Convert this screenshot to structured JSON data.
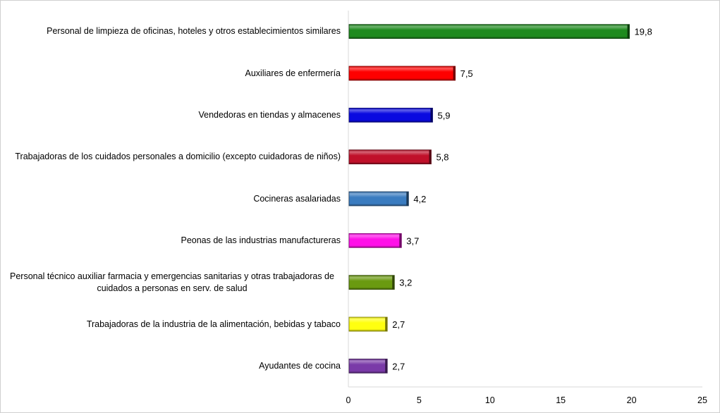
{
  "chart_data": {
    "type": "bar",
    "orientation": "horizontal",
    "title": "",
    "xlabel": "",
    "ylabel": "",
    "xlim": [
      0,
      25
    ],
    "xticks": [
      "0",
      "5",
      "10",
      "15",
      "20",
      "25"
    ],
    "grid": false,
    "legend": "none",
    "categories": [
      "Personal de limpieza de oficinas, hoteles y otros establecimientos similares",
      "Auxiliares de enfermería",
      "Vendedoras en tiendas y almacenes",
      "Trabajadoras de los cuidados personales a domicilio (excepto cuidadoras de niños)",
      "Cocineras asalariadas",
      "Peonas de las industrias manufactureras",
      "Personal técnico auxiliar farmacia y emergencias sanitarias y otras trabajadoras de cuidados a  personas en serv. de salud",
      "Trabajadoras de la industria de la alimentación, bebidas y tabaco",
      "Ayudantes de cocina"
    ],
    "values": [
      19.8,
      7.5,
      5.9,
      5.8,
      4.2,
      3.7,
      3.2,
      2.7,
      2.7
    ],
    "data_labels": [
      "19,8",
      "7,5",
      "5,9",
      "5,8",
      "4,2",
      "3,7",
      "3,2",
      "2,7",
      "2,7"
    ],
    "colors": [
      "#1e8a1e",
      "#ff0000",
      "#0a0ae0",
      "#c0102a",
      "#3a7cc0",
      "#ff10e8",
      "#6a9a10",
      "#ffff10",
      "#7a3aa8"
    ]
  }
}
